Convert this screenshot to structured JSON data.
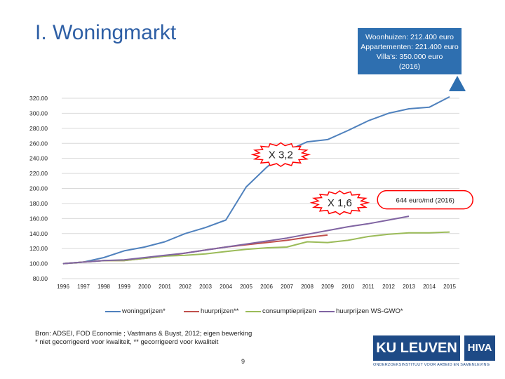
{
  "title": "I. Woningmarkt",
  "callout": {
    "lines": [
      "Woonhuizen: 212.400 euro",
      "Appartementen: 221.400 euro",
      "Villa's: 350.000 euro",
      "(2016)"
    ]
  },
  "source": {
    "line1": "Bron: ADSEI, FOD Economie ; Vastmans & Buyst, 2012; eigen bewerking",
    "line2": "* niet gecorrigeerd voor kwaliteit, ** gecorrigeerd voor kwaliteit"
  },
  "page_number": "9",
  "logos": {
    "ku": "KU LEUVEN",
    "hiva": "HIVA",
    "sub": "ONDERZOEKSINSTITUUT VOOR ARBEID EN SAMENLEVING"
  },
  "colors": {
    "woningprijzen": "#4f81bd",
    "huurprijzen": "#c0504d",
    "consumptieprijzen": "#9bbb59",
    "huurprijzen_ws": "#8064a2",
    "callout_bg": "#2e6fb0",
    "title": "#2e5fa5"
  },
  "chart_data": {
    "type": "line",
    "title": "",
    "xlabel": "",
    "ylabel": "",
    "ylim": [
      80,
      320
    ],
    "y_ticks": [
      "80.00",
      "100.00",
      "120.00",
      "140.00",
      "160.00",
      "180.00",
      "200.00",
      "220.00",
      "240.00",
      "260.00",
      "280.00",
      "300.00",
      "320.00"
    ],
    "x_tick_labels": [
      "1996",
      "1997",
      "1998",
      "1999",
      "2000",
      "2001",
      "2002",
      "2003",
      "2004",
      "2005",
      "2006",
      "2007",
      "2008",
      "2009",
      "2010",
      "2011",
      "2012",
      "2013",
      "2014",
      "2015"
    ],
    "grid": true,
    "legend_position": "bottom",
    "series": [
      {
        "key": "woningprijzen",
        "name": "woningprijzen*",
        "points": [
          [
            1996,
            100
          ],
          [
            1997,
            102
          ],
          [
            1998,
            108
          ],
          [
            1999,
            117
          ],
          [
            2000,
            122
          ],
          [
            2001,
            129
          ],
          [
            2002,
            140
          ],
          [
            2003,
            148
          ],
          [
            2004,
            158
          ],
          [
            2005,
            202
          ],
          [
            2006,
            228
          ],
          [
            2007,
            250
          ],
          [
            2008,
            262
          ],
          [
            2009,
            265
          ],
          [
            2010,
            277
          ],
          [
            2011,
            290
          ],
          [
            2012,
            300
          ],
          [
            2013,
            306
          ],
          [
            2014,
            308
          ],
          [
            2015,
            322
          ]
        ]
      },
      {
        "key": "huurprijzen",
        "name": "huurprijzen**",
        "points": [
          [
            1996,
            100
          ],
          [
            1997,
            102
          ],
          [
            1998,
            104
          ],
          [
            1999,
            104
          ],
          [
            2000,
            107
          ],
          [
            2001,
            110
          ],
          [
            2002,
            114
          ],
          [
            2003,
            118
          ],
          [
            2004,
            122
          ],
          [
            2005,
            125
          ],
          [
            2006,
            128
          ],
          [
            2007,
            131
          ],
          [
            2008,
            135
          ],
          [
            2009,
            138
          ]
        ]
      },
      {
        "key": "consumptieprijzen",
        "name": "consumptieprijzen",
        "points": [
          [
            1996,
            100
          ],
          [
            1997,
            102
          ],
          [
            1998,
            104
          ],
          [
            1999,
            104
          ],
          [
            2000,
            107
          ],
          [
            2001,
            110
          ],
          [
            2002,
            111
          ],
          [
            2003,
            113
          ],
          [
            2004,
            116
          ],
          [
            2005,
            119
          ],
          [
            2006,
            121
          ],
          [
            2007,
            122
          ],
          [
            2008,
            129
          ],
          [
            2009,
            128
          ],
          [
            2010,
            131
          ],
          [
            2011,
            136
          ],
          [
            2012,
            139
          ],
          [
            2013,
            141
          ],
          [
            2014,
            141
          ],
          [
            2015,
            142
          ]
        ]
      },
      {
        "key": "huurprijzen_ws",
        "name": "huurprijzen WS-GWO*",
        "points": [
          [
            1996,
            100
          ],
          [
            1997,
            102
          ],
          [
            1998,
            104
          ],
          [
            1999,
            105
          ],
          [
            2000,
            108
          ],
          [
            2001,
            111
          ],
          [
            2002,
            114
          ],
          [
            2003,
            118
          ],
          [
            2004,
            122
          ],
          [
            2005,
            126
          ],
          [
            2006,
            130
          ],
          [
            2007,
            134
          ],
          [
            2008,
            139
          ],
          [
            2009,
            144
          ],
          [
            2010,
            149
          ],
          [
            2011,
            153
          ],
          [
            2012,
            158
          ],
          [
            2013,
            163
          ]
        ]
      }
    ],
    "annotations": [
      {
        "text": "X 3,2",
        "shape": "starburst",
        "x": 2006.7,
        "y": 245
      },
      {
        "text": "X 1,6",
        "shape": "starburst",
        "x": 2009.6,
        "y": 181
      },
      {
        "text": "644 euro/md (2016)",
        "shape": "cloud",
        "x": 2013.8,
        "y": 185
      }
    ]
  }
}
